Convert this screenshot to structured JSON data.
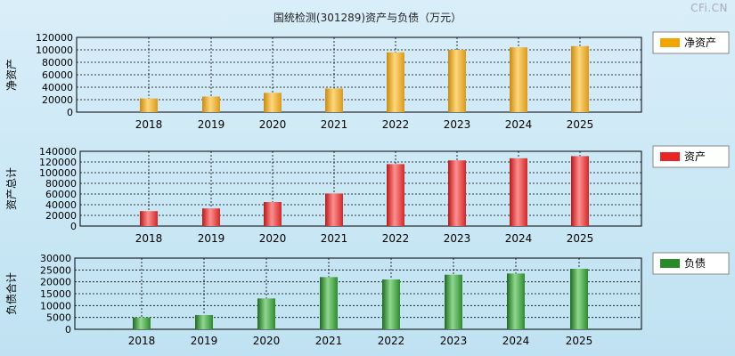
{
  "title": "国统检测(301289)资产与负债（万元）",
  "watermark": "CFi.CN",
  "colors": {
    "equity": "#f2a400",
    "assets": "#e82424",
    "liabilities": "#2a8a2a",
    "background": "#cde8f4"
  },
  "chart_data": [
    {
      "type": "bar",
      "ylabel": "净资产",
      "legend": "净资产",
      "legend_position": "right",
      "categories": [
        "2018",
        "2019",
        "2020",
        "2021",
        "2022",
        "2023",
        "2024",
        "2025"
      ],
      "values": [
        22000,
        25000,
        31000,
        38000,
        96000,
        100000,
        104000,
        106000
      ],
      "ylim": [
        0,
        120000
      ],
      "yticks": [
        "120000",
        "100000",
        "80000",
        "60000",
        "40000",
        "20000",
        "0"
      ],
      "grid": true
    },
    {
      "type": "bar",
      "ylabel": "资产总计",
      "legend": "资产",
      "legend_position": "right",
      "categories": [
        "2018",
        "2019",
        "2020",
        "2021",
        "2022",
        "2023",
        "2024",
        "2025"
      ],
      "values": [
        28000,
        33000,
        45000,
        61000,
        116000,
        123000,
        127000,
        131000
      ],
      "ylim": [
        0,
        140000
      ],
      "yticks": [
        "140000",
        "120000",
        "100000",
        "80000",
        "60000",
        "40000",
        "20000",
        "0"
      ],
      "grid": true
    },
    {
      "type": "bar",
      "ylabel": "负债合计",
      "legend": "负债",
      "legend_position": "right",
      "categories": [
        "2018",
        "2019",
        "2020",
        "2021",
        "2022",
        "2023",
        "2024",
        "2025"
      ],
      "values": [
        5000,
        6000,
        13000,
        22000,
        21000,
        23000,
        23500,
        25500
      ],
      "ylim": [
        0,
        30000
      ],
      "yticks": [
        "30000",
        "25000",
        "20000",
        "15000",
        "10000",
        "5000",
        "0"
      ],
      "grid": true
    }
  ]
}
